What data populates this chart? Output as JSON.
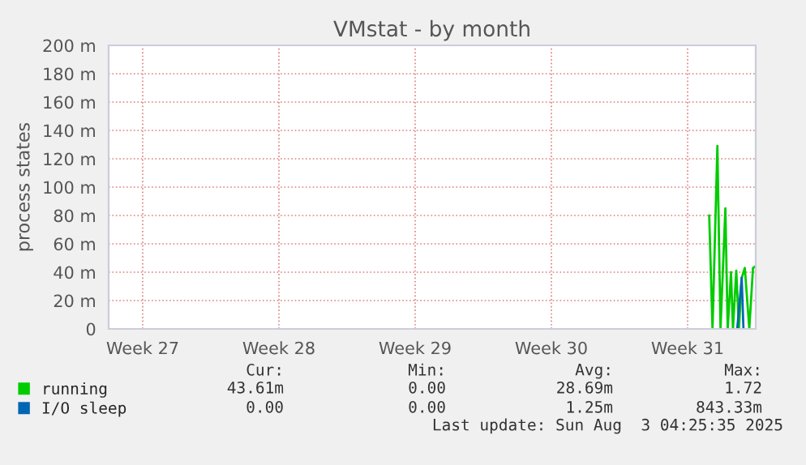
{
  "chart_data": {
    "type": "line",
    "title": "VMstat - by month",
    "ylabel": "process states",
    "xlim": [
      "2025-06-30T22:00",
      "2025-08-03T04:00"
    ],
    "xticks": [
      {
        "value": "2025-07-02T16:00",
        "label": "Week 27"
      },
      {
        "value": "2025-07-09T16:00",
        "label": "Week 28"
      },
      {
        "value": "2025-07-16T16:00",
        "label": "Week 29"
      },
      {
        "value": "2025-07-23T16:00",
        "label": "Week 30"
      },
      {
        "value": "2025-07-30T16:00",
        "label": "Week 31"
      }
    ],
    "ylim": [
      0,
      200
    ],
    "yticks": [
      {
        "value": 0,
        "label": "0"
      },
      {
        "value": 20,
        "label": "20 m"
      },
      {
        "value": 40,
        "label": "40 m"
      },
      {
        "value": 60,
        "label": "60 m"
      },
      {
        "value": 80,
        "label": "80 m"
      },
      {
        "value": 100,
        "label": "100 m"
      },
      {
        "value": 120,
        "label": "120 m"
      },
      {
        "value": 140,
        "label": "140 m"
      },
      {
        "value": 160,
        "label": "160 m"
      },
      {
        "value": 180,
        "label": "180 m"
      },
      {
        "value": 200,
        "label": "200 m"
      }
    ],
    "grid": true,
    "legend": "bottom left",
    "series": [
      {
        "name": "running",
        "color": "#00cc00",
        "x": [
          "2025-07-31T18:38",
          "2025-07-31T22:43",
          "2025-08-01T04:43",
          "2025-08-01T08:34",
          "2025-08-01T14:34",
          "2025-08-01T17:26",
          "2025-08-01T21:31",
          "2025-08-01T23:55",
          "2025-08-02T04:00",
          "2025-08-02T07:22",
          "2025-08-02T10:43",
          "2025-08-02T14:34",
          "2025-08-02T20:05",
          "2025-08-03T00:38",
          "2025-08-03T03:17"
        ],
        "values": [
          80,
          0,
          129,
          0,
          85,
          0,
          40,
          0,
          41,
          0,
          36,
          43,
          0,
          43,
          44
        ]
      },
      {
        "name": "I/O sleep",
        "color": "#0066b3",
        "x": [
          "2025-08-02T05:12",
          "2025-08-02T10:43",
          "2025-08-02T12:53"
        ],
        "values": [
          0,
          36,
          0
        ]
      }
    ],
    "annotations": [
      "Cur:",
      "Min:",
      "Avg:",
      "Max:",
      "43.61m",
      "0.00",
      "28.69m",
      "1.72",
      "0.00",
      "0.00",
      "1.25m",
      "843.33m",
      "Last update: Sun Aug  3 04:25:35 2025"
    ]
  }
}
